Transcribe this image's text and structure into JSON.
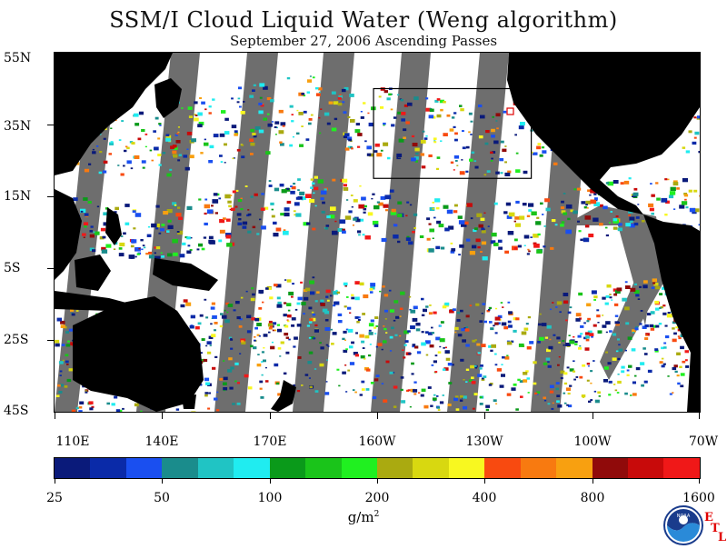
{
  "header": {
    "title": "SSM/I Cloud Liquid Water (Weng algorithm)",
    "subtitle": "September 27, 2006  Ascending Passes"
  },
  "axes": {
    "lat_labels": [
      "55N",
      "35N",
      "15N",
      "5S",
      "25S",
      "45S"
    ],
    "lon_labels": [
      "110E",
      "140E",
      "170E",
      "160W",
      "130W",
      "100W",
      "70W"
    ]
  },
  "colorbar": {
    "colors": [
      "#0a1a7a",
      "#0a2aa8",
      "#1a4ff0",
      "#1a8c8c",
      "#20c4c4",
      "#20ecf0",
      "#0a9a1a",
      "#1ac41a",
      "#20f020",
      "#aaaa10",
      "#d8d810",
      "#f8f820",
      "#f84a10",
      "#f87a10",
      "#f8a010",
      "#900a0a",
      "#c80a0a",
      "#f01818"
    ],
    "labels": [
      "25",
      "50",
      "100",
      "200",
      "400",
      "800",
      "1600"
    ],
    "units_base": "g/m",
    "units_exp": "2"
  },
  "map": {
    "land_color": "#000000",
    "nodata_color": "#6e6e6e",
    "ocean_color": "#ffffff",
    "region_box": {
      "lon_min": -161,
      "lon_max": -117,
      "lat_min": 20,
      "lat_max": 45
    }
  },
  "logo": {
    "org": "NOAA",
    "etl_letters": [
      "E",
      "T",
      "L"
    ]
  }
}
